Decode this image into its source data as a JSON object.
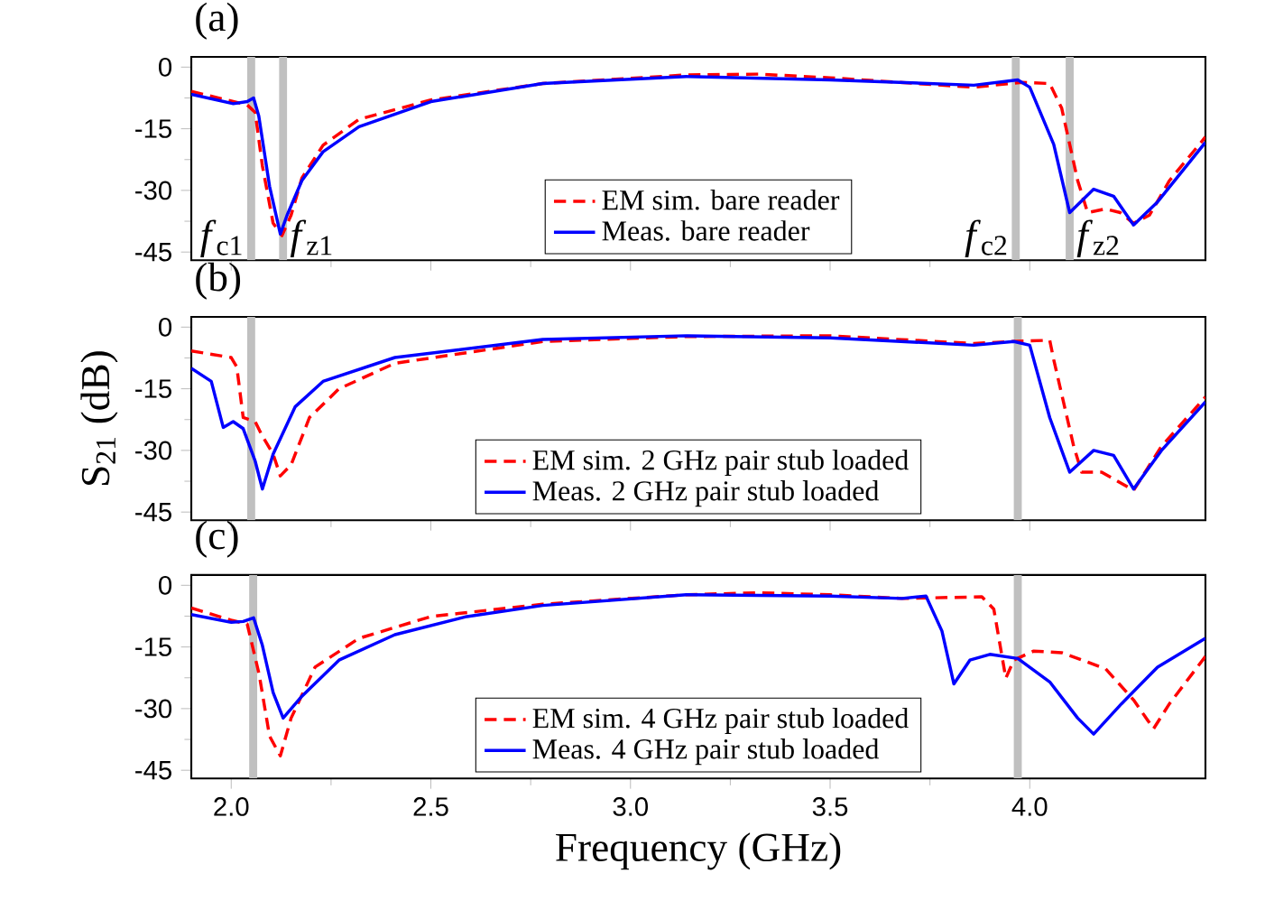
{
  "chart_data": [
    {
      "type": "line",
      "title": "(a)",
      "xlim": [
        1.9,
        4.44
      ],
      "ylim": [
        -47,
        2.5
      ],
      "tick_labels": "y",
      "xticks": [
        2,
        2.5,
        3,
        3.5,
        4
      ],
      "yticks": [
        0,
        -15,
        -30,
        -45
      ],
      "grid": false,
      "legend": "bottom",
      "bands": [
        {
          "axis": "x",
          "from": 2.04,
          "to": 2.06,
          "color": "#c0c0c0"
        },
        {
          "axis": "x",
          "from": 2.12,
          "to": 2.14,
          "color": "#c0c0c0"
        },
        {
          "axis": "x",
          "from": 3.955,
          "to": 3.975,
          "color": "#c0c0c0"
        },
        {
          "axis": "x",
          "from": 4.09,
          "to": 4.11,
          "color": "#c0c0c0"
        }
      ],
      "annotations": [
        "*f*$_{c1}$",
        "*f*$_{z1}$",
        "*f*$_{c2}$",
        "*f*$_{z2}$"
      ],
      "series": [
        {
          "name": "EM sim. bare reader",
          "color": "#ff0000",
          "line_style": "dashed",
          "x": [
            1.9,
            2.04,
            2.06,
            2.078,
            2.105,
            2.127,
            2.15,
            2.177,
            2.23,
            2.32,
            2.5,
            2.78,
            3.14,
            3.32,
            3.5,
            3.86,
            3.98,
            4.05,
            4.08,
            4.12,
            4.145,
            4.19,
            4.227,
            4.26,
            4.3,
            4.35,
            4.44
          ],
          "values": [
            -5.9,
            -9.2,
            -11,
            -24,
            -38,
            -41,
            -36,
            -27,
            -19,
            -12.7,
            -8,
            -4,
            -1.9,
            -1.7,
            -2.6,
            -4.9,
            -3.7,
            -4,
            -10,
            -27.6,
            -35.4,
            -34.5,
            -35.4,
            -38,
            -36,
            -27.6,
            -17
          ]
        },
        {
          "name": "Meas. bare reader",
          "color": "#0000ff",
          "line_style": "solid",
          "x": [
            1.9,
            2.005,
            2.04,
            2.056,
            2.069,
            2.096,
            2.123,
            2.14,
            2.177,
            2.23,
            2.32,
            2.5,
            2.78,
            3.14,
            3.5,
            3.86,
            3.97,
            4.0,
            4.06,
            4.1,
            4.16,
            4.21,
            4.26,
            4.32,
            4.44
          ],
          "values": [
            -6.6,
            -8.9,
            -8.4,
            -7.5,
            -11.9,
            -29,
            -40.6,
            -36,
            -27.6,
            -20.6,
            -14.5,
            -8.4,
            -4,
            -2.3,
            -3.1,
            -4.4,
            -3.1,
            -4.9,
            -18.8,
            -35.4,
            -29.7,
            -31.4,
            -38.4,
            -32.8,
            -18.3
          ]
        }
      ]
    },
    {
      "type": "line",
      "title": "(b)",
      "ylabel": "S$_{21}$ (dB)",
      "xlim": [
        1.9,
        4.44
      ],
      "ylim": [
        -47,
        2.5
      ],
      "tick_labels": "y",
      "xticks": [
        2,
        2.5,
        3,
        3.5,
        4
      ],
      "yticks": [
        0,
        -15,
        -30,
        -45
      ],
      "grid": false,
      "legend": "bottom",
      "bands": [
        {
          "axis": "x",
          "from": 2.04,
          "to": 2.06,
          "color": "#c0c0c0"
        },
        {
          "axis": "x",
          "from": 3.96,
          "to": 3.98,
          "color": "#c0c0c0"
        }
      ],
      "series": [
        {
          "name": "EM sim. 2 GHz pair stub loaded",
          "color": "#ff0000",
          "line_style": "dashed",
          "x": [
            1.9,
            2.0,
            2.014,
            2.03,
            2.06,
            2.078,
            2.105,
            2.123,
            2.15,
            2.196,
            2.27,
            2.41,
            2.78,
            3.14,
            3.5,
            3.86,
            3.95,
            4.05,
            4.06,
            4.11,
            4.13,
            4.18,
            4.26,
            4.33,
            4.44
          ],
          "values": [
            -5.8,
            -7.4,
            -9.7,
            -22,
            -23,
            -26.5,
            -30.9,
            -36.2,
            -33.5,
            -22,
            -15,
            -8.8,
            -3.5,
            -2.3,
            -2.1,
            -4,
            -3.5,
            -3.2,
            -7.9,
            -29,
            -35.3,
            -35.3,
            -39.7,
            -29,
            -17
          ]
        },
        {
          "name": "Meas. 2 GHz pair stub loaded",
          "color": "#0000ff",
          "line_style": "solid",
          "x": [
            1.9,
            1.95,
            1.98,
            2.005,
            2.03,
            2.06,
            2.078,
            2.105,
            2.16,
            2.23,
            2.41,
            2.78,
            3.14,
            3.5,
            3.86,
            3.96,
            4.0,
            4.05,
            4.1,
            4.16,
            4.21,
            4.26,
            4.33,
            4.44
          ],
          "values": [
            -10,
            -13.2,
            -24.4,
            -23,
            -24.7,
            -32.6,
            -39.4,
            -30.9,
            -19.4,
            -13.2,
            -7.4,
            -3,
            -2.1,
            -2.6,
            -4.4,
            -3.5,
            -4.4,
            -22,
            -35.3,
            -30,
            -31.2,
            -39.4,
            -30,
            -18.2
          ]
        }
      ]
    },
    {
      "type": "line",
      "title": "(c)",
      "xlabel": "Frequency (GHz)",
      "xlim": [
        1.9,
        4.44
      ],
      "ylim": [
        -47,
        2.5
      ],
      "xticks": [
        {
          "value": 2.0,
          "label": "2.0"
        },
        {
          "value": 2.5,
          "label": "2.5"
        },
        {
          "value": 3.0,
          "label": "3.0"
        },
        {
          "value": 3.5,
          "label": "3.5"
        },
        {
          "value": 4.0,
          "label": "4.0"
        }
      ],
      "yticks": [
        0,
        -15,
        -30,
        -45
      ],
      "grid": false,
      "legend": "bottom",
      "bands": [
        {
          "axis": "x",
          "from": 2.045,
          "to": 2.065,
          "color": "#c0c0c0"
        },
        {
          "axis": "x",
          "from": 3.96,
          "to": 3.98,
          "color": "#c0c0c0"
        }
      ],
      "series": [
        {
          "name": "EM sim. 4 GHz pair stub loaded",
          "color": "#ff0000",
          "line_style": "dashed",
          "x": [
            1.9,
            2.0,
            2.04,
            2.07,
            2.096,
            2.123,
            2.15,
            2.21,
            2.32,
            2.5,
            2.78,
            3.14,
            3.32,
            3.5,
            3.68,
            3.88,
            3.91,
            3.94,
            3.96,
            4.01,
            4.08,
            4.19,
            4.26,
            4.31,
            4.35,
            4.44
          ],
          "values": [
            -5.5,
            -8.5,
            -9.4,
            -21.7,
            -36.7,
            -41.5,
            -32.3,
            -19.9,
            -12.9,
            -7.6,
            -4.6,
            -2.3,
            -1.8,
            -2.3,
            -3.2,
            -2.8,
            -5.8,
            -22.6,
            -18.2,
            -16,
            -16.4,
            -20.3,
            -27.9,
            -34.9,
            -28.8,
            -17.3
          ]
        },
        {
          "name": "Meas. 4 GHz pair stub loaded",
          "color": "#0000ff",
          "line_style": "solid",
          "x": [
            1.9,
            2.0,
            2.03,
            2.056,
            2.078,
            2.105,
            2.13,
            2.177,
            2.27,
            2.41,
            2.59,
            2.78,
            3.14,
            3.5,
            3.68,
            3.74,
            3.78,
            3.81,
            3.85,
            3.9,
            3.97,
            4.05,
            4.12,
            4.16,
            4.23,
            4.32,
            4.44
          ],
          "values": [
            -7.1,
            -9,
            -8.8,
            -7.9,
            -14.6,
            -26.1,
            -32.3,
            -27,
            -18.2,
            -12,
            -7.6,
            -4.9,
            -2.3,
            -2.6,
            -3.2,
            -2.6,
            -11.1,
            -24,
            -18.2,
            -16.8,
            -17.8,
            -23.5,
            -32.3,
            -36.2,
            -28.8,
            -19.9,
            -12.9
          ]
        }
      ]
    }
  ]
}
